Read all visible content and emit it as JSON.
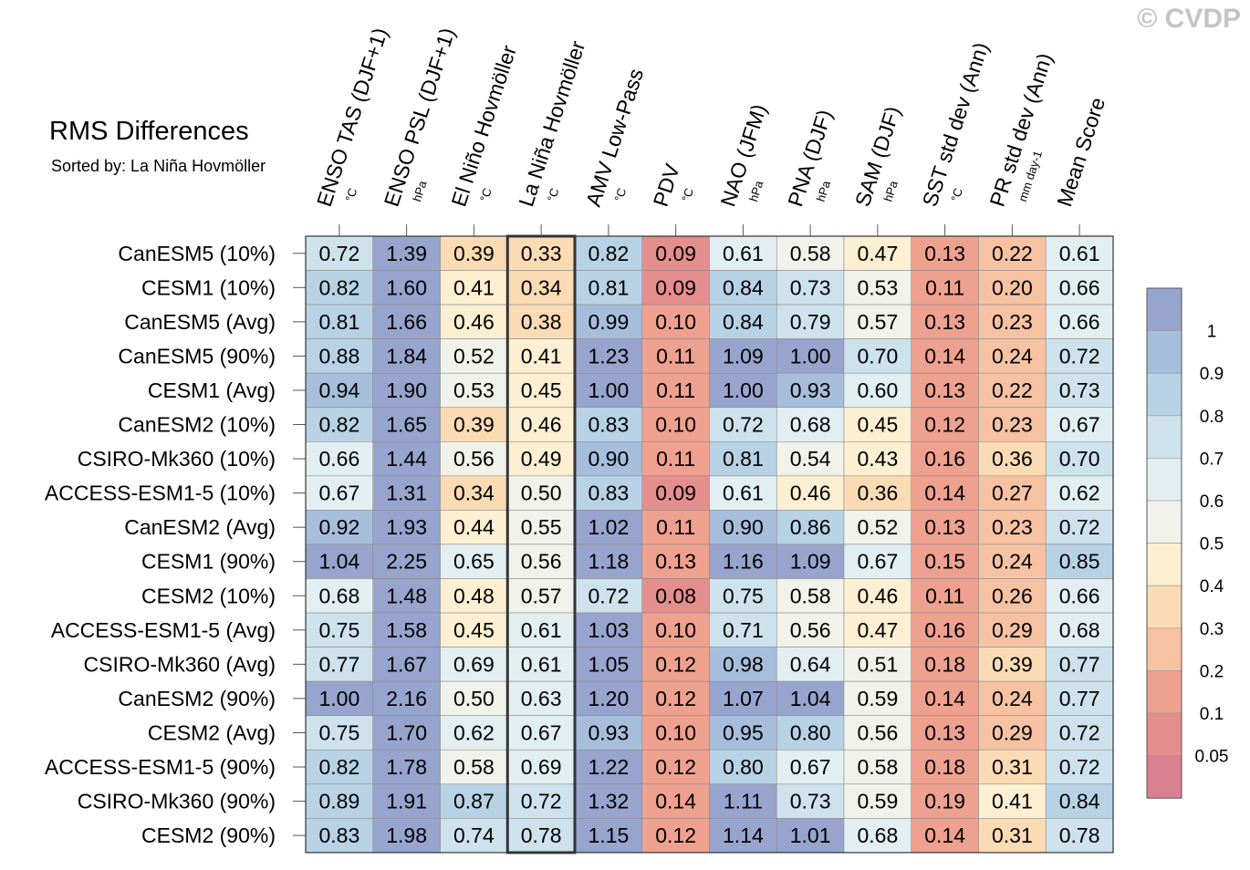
{
  "header": {
    "title": "RMS Differences",
    "subtitle": "Sorted by: La Niña Hovmöller",
    "watermark": "© CVDP"
  },
  "chart_data": {
    "type": "heatmap",
    "columns": [
      {
        "name": "ENSO TAS (DJF+1)",
        "unit": "°C"
      },
      {
        "name": "ENSO PSL (DJF+1)",
        "unit": "hPa"
      },
      {
        "name": "El Niño Hovmöller",
        "unit": "°C"
      },
      {
        "name": "La Niña Hovmöller",
        "unit": "°C"
      },
      {
        "name": "AMV Low-Pass",
        "unit": "°C"
      },
      {
        "name": "PDV",
        "unit": "°C"
      },
      {
        "name": "NAO (JFM)",
        "unit": "hPa"
      },
      {
        "name": "PNA (DJF)",
        "unit": "hPa"
      },
      {
        "name": "SAM (DJF)",
        "unit": "hPa"
      },
      {
        "name": "SST std dev (Ann)",
        "unit": "°C"
      },
      {
        "name": "PR std dev (Ann)",
        "unit": "mm day-1"
      },
      {
        "name": "Mean Score",
        "unit": ""
      }
    ],
    "rows": [
      "CanESM5 (10%)",
      "CESM1 (10%)",
      "CanESM5 (Avg)",
      "CanESM5 (90%)",
      "CESM1 (Avg)",
      "CanESM2 (10%)",
      "CSIRO-Mk360 (10%)",
      "ACCESS-ESM1-5 (10%)",
      "CanESM2 (Avg)",
      "CESM1 (90%)",
      "CESM2 (10%)",
      "ACCESS-ESM1-5 (Avg)",
      "CSIRO-Mk360 (Avg)",
      "CanESM2 (90%)",
      "CESM2 (Avg)",
      "ACCESS-ESM1-5 (90%)",
      "CSIRO-Mk360 (90%)",
      "CESM2 (90%)"
    ],
    "values": [
      [
        "0.72",
        "1.39",
        "0.39",
        "0.33",
        "0.82",
        "0.09",
        "0.61",
        "0.58",
        "0.47",
        "0.13",
        "0.22",
        "0.61"
      ],
      [
        "0.82",
        "1.60",
        "0.41",
        "0.34",
        "0.81",
        "0.09",
        "0.84",
        "0.73",
        "0.53",
        "0.11",
        "0.20",
        "0.66"
      ],
      [
        "0.81",
        "1.66",
        "0.46",
        "0.38",
        "0.99",
        "0.10",
        "0.84",
        "0.79",
        "0.57",
        "0.13",
        "0.23",
        "0.66"
      ],
      [
        "0.88",
        "1.84",
        "0.52",
        "0.41",
        "1.23",
        "0.11",
        "1.09",
        "1.00",
        "0.70",
        "0.14",
        "0.24",
        "0.72"
      ],
      [
        "0.94",
        "1.90",
        "0.53",
        "0.45",
        "1.00",
        "0.11",
        "1.00",
        "0.93",
        "0.60",
        "0.13",
        "0.22",
        "0.73"
      ],
      [
        "0.82",
        "1.65",
        "0.39",
        "0.46",
        "0.83",
        "0.10",
        "0.72",
        "0.68",
        "0.45",
        "0.12",
        "0.23",
        "0.67"
      ],
      [
        "0.66",
        "1.44",
        "0.56",
        "0.49",
        "0.90",
        "0.11",
        "0.81",
        "0.54",
        "0.43",
        "0.16",
        "0.36",
        "0.70"
      ],
      [
        "0.67",
        "1.31",
        "0.34",
        "0.50",
        "0.83",
        "0.09",
        "0.61",
        "0.46",
        "0.36",
        "0.14",
        "0.27",
        "0.62"
      ],
      [
        "0.92",
        "1.93",
        "0.44",
        "0.55",
        "1.02",
        "0.11",
        "0.90",
        "0.86",
        "0.52",
        "0.13",
        "0.23",
        "0.72"
      ],
      [
        "1.04",
        "2.25",
        "0.65",
        "0.56",
        "1.18",
        "0.13",
        "1.16",
        "1.09",
        "0.67",
        "0.15",
        "0.24",
        "0.85"
      ],
      [
        "0.68",
        "1.48",
        "0.48",
        "0.57",
        "0.72",
        "0.08",
        "0.75",
        "0.58",
        "0.46",
        "0.11",
        "0.26",
        "0.66"
      ],
      [
        "0.75",
        "1.58",
        "0.45",
        "0.61",
        "1.03",
        "0.10",
        "0.71",
        "0.56",
        "0.47",
        "0.16",
        "0.29",
        "0.68"
      ],
      [
        "0.77",
        "1.67",
        "0.69",
        "0.61",
        "1.05",
        "0.12",
        "0.98",
        "0.64",
        "0.51",
        "0.18",
        "0.39",
        "0.77"
      ],
      [
        "1.00",
        "2.16",
        "0.50",
        "0.63",
        "1.20",
        "0.12",
        "1.07",
        "1.04",
        "0.59",
        "0.14",
        "0.24",
        "0.77"
      ],
      [
        "0.75",
        "1.70",
        "0.62",
        "0.67",
        "0.93",
        "0.10",
        "0.95",
        "0.80",
        "0.56",
        "0.13",
        "0.29",
        "0.72"
      ],
      [
        "0.82",
        "1.78",
        "0.58",
        "0.69",
        "1.22",
        "0.12",
        "0.80",
        "0.67",
        "0.58",
        "0.18",
        "0.31",
        "0.72"
      ],
      [
        "0.89",
        "1.91",
        "0.87",
        "0.72",
        "1.32",
        "0.14",
        "1.11",
        "0.73",
        "0.59",
        "0.19",
        "0.41",
        "0.84"
      ],
      [
        "0.83",
        "1.98",
        "0.74",
        "0.78",
        "1.15",
        "0.12",
        "1.14",
        "1.01",
        "0.68",
        "0.14",
        "0.31",
        "0.78"
      ]
    ],
    "highlighted_column": "La Niña Hovmöller",
    "colorbar": {
      "labels": [
        "1",
        "0.9",
        "0.8",
        "0.7",
        "0.6",
        "0.5",
        "0.4",
        "0.3",
        "0.2",
        "0.1",
        "0.05"
      ],
      "colors": [
        "#97a4cd",
        "#a6bedc",
        "#b8d2e5",
        "#cde2ec",
        "#e2eff2",
        "#f1f2e9",
        "#fcefd2",
        "#fadbb3",
        "#f6c2a2",
        "#efa190",
        "#e48e8e",
        "#d98091"
      ]
    }
  }
}
